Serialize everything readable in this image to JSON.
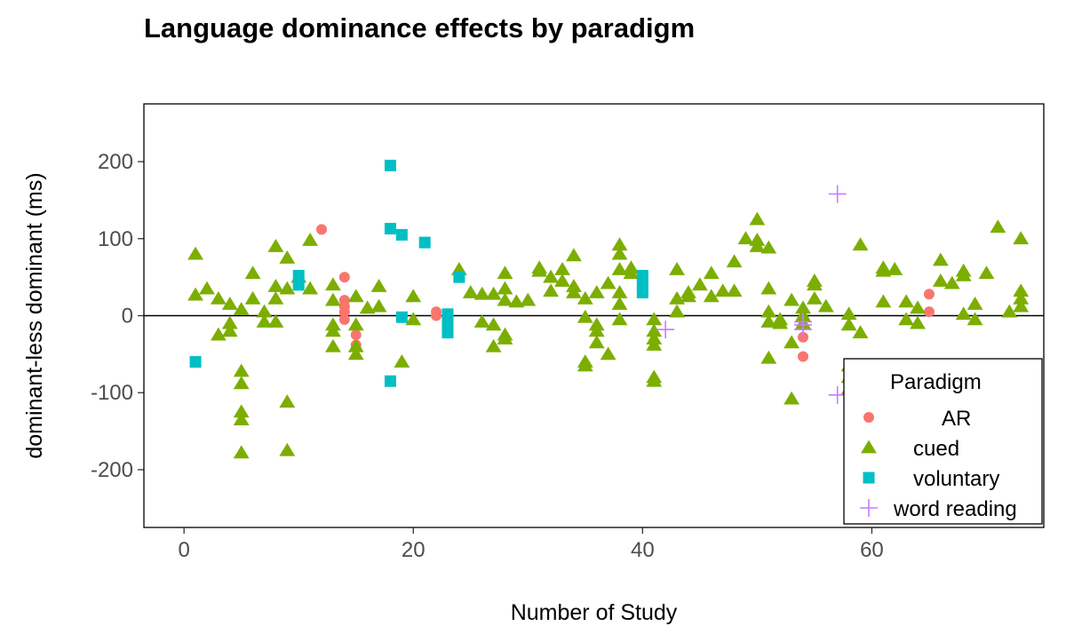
{
  "chart_data": {
    "type": "scatter",
    "title": "Language dominance effects by paradigm",
    "xlabel": "Number of Study",
    "ylabel": "dominant-less dominant (ms)",
    "xlim": [
      -3.5,
      75
    ],
    "ylim": [
      -275,
      275
    ],
    "xticks": [
      0,
      20,
      40,
      60
    ],
    "yticks": [
      200,
      100,
      0,
      -100,
      -200
    ],
    "hline": 0,
    "legend": {
      "title": "Paradigm",
      "position": "bottom-right",
      "entries": [
        "AR",
        "cued",
        "voluntary",
        "word reading"
      ]
    },
    "colors": {
      "AR": "#F8766D",
      "cued": "#7CAE00",
      "voluntary": "#00BFC4",
      "word reading": "#C77CFF"
    },
    "series": [
      {
        "name": "AR",
        "shape": "circle",
        "points": [
          [
            12,
            112
          ],
          [
            14,
            50
          ],
          [
            14,
            20
          ],
          [
            14,
            12
          ],
          [
            14,
            5
          ],
          [
            14,
            -5
          ],
          [
            15,
            -25
          ],
          [
            15,
            -38
          ],
          [
            22,
            5
          ],
          [
            22,
            0
          ],
          [
            54,
            -28
          ],
          [
            54,
            -53
          ],
          [
            65,
            28
          ],
          [
            65,
            5
          ]
        ]
      },
      {
        "name": "cued",
        "shape": "triangle",
        "points": [
          [
            1,
            80
          ],
          [
            1,
            27
          ],
          [
            2,
            35
          ],
          [
            3,
            22
          ],
          [
            3,
            -25
          ],
          [
            4,
            15
          ],
          [
            4,
            -10
          ],
          [
            4,
            -20
          ],
          [
            5,
            8
          ],
          [
            5,
            -72
          ],
          [
            5,
            -88
          ],
          [
            5,
            -125
          ],
          [
            5,
            -135
          ],
          [
            5,
            -178
          ],
          [
            6,
            55
          ],
          [
            6,
            22
          ],
          [
            7,
            5
          ],
          [
            7,
            -8
          ],
          [
            8,
            90
          ],
          [
            8,
            38
          ],
          [
            8,
            22
          ],
          [
            8,
            -8
          ],
          [
            9,
            75
          ],
          [
            9,
            35
          ],
          [
            9,
            -112
          ],
          [
            9,
            -175
          ],
          [
            10,
            50
          ],
          [
            11,
            35
          ],
          [
            11,
            98
          ],
          [
            13,
            40
          ],
          [
            13,
            20
          ],
          [
            13,
            -12
          ],
          [
            13,
            -20
          ],
          [
            13,
            -40
          ],
          [
            15,
            25
          ],
          [
            15,
            -12
          ],
          [
            15,
            -40
          ],
          [
            15,
            -50
          ],
          [
            16,
            10
          ],
          [
            17,
            38
          ],
          [
            17,
            12
          ],
          [
            19,
            -60
          ],
          [
            20,
            25
          ],
          [
            20,
            -5
          ],
          [
            24,
            60
          ],
          [
            25,
            30
          ],
          [
            26,
            28
          ],
          [
            26,
            -8
          ],
          [
            27,
            28
          ],
          [
            27,
            -12
          ],
          [
            27,
            -40
          ],
          [
            28,
            55
          ],
          [
            28,
            35
          ],
          [
            28,
            20
          ],
          [
            28,
            -25
          ],
          [
            28,
            -30
          ],
          [
            29,
            18
          ],
          [
            30,
            20
          ],
          [
            31,
            62
          ],
          [
            31,
            58
          ],
          [
            32,
            50
          ],
          [
            32,
            32
          ],
          [
            33,
            60
          ],
          [
            33,
            45
          ],
          [
            34,
            78
          ],
          [
            34,
            38
          ],
          [
            34,
            30
          ],
          [
            35,
            22
          ],
          [
            35,
            -2
          ],
          [
            35,
            -60
          ],
          [
            35,
            -65
          ],
          [
            36,
            30
          ],
          [
            36,
            -12
          ],
          [
            36,
            -20
          ],
          [
            36,
            -35
          ],
          [
            37,
            -50
          ],
          [
            37,
            42
          ],
          [
            38,
            92
          ],
          [
            38,
            80
          ],
          [
            38,
            60
          ],
          [
            38,
            30
          ],
          [
            38,
            15
          ],
          [
            38,
            -5
          ],
          [
            39,
            62
          ],
          [
            39,
            55
          ],
          [
            41,
            -5
          ],
          [
            41,
            -20
          ],
          [
            41,
            -30
          ],
          [
            41,
            -38
          ],
          [
            41,
            -80
          ],
          [
            41,
            -85
          ],
          [
            43,
            60
          ],
          [
            43,
            22
          ],
          [
            43,
            5
          ],
          [
            44,
            25
          ],
          [
            44,
            30
          ],
          [
            45,
            40
          ],
          [
            46,
            25
          ],
          [
            46,
            55
          ],
          [
            47,
            32
          ],
          [
            48,
            70
          ],
          [
            48,
            32
          ],
          [
            49,
            100
          ],
          [
            50,
            125
          ],
          [
            50,
            98
          ],
          [
            50,
            90
          ],
          [
            51,
            88
          ],
          [
            51,
            35
          ],
          [
            51,
            5
          ],
          [
            51,
            -8
          ],
          [
            51,
            -55
          ],
          [
            52,
            -10
          ],
          [
            52,
            -5
          ],
          [
            53,
            20
          ],
          [
            53,
            -35
          ],
          [
            53,
            -108
          ],
          [
            54,
            0
          ],
          [
            54,
            10
          ],
          [
            54,
            -10
          ],
          [
            55,
            45
          ],
          [
            55,
            40
          ],
          [
            55,
            22
          ],
          [
            56,
            12
          ],
          [
            58,
            2
          ],
          [
            58,
            -12
          ],
          [
            58,
            -65
          ],
          [
            58,
            -80
          ],
          [
            58,
            -95
          ],
          [
            59,
            92
          ],
          [
            59,
            -22
          ],
          [
            61,
            62
          ],
          [
            61,
            58
          ],
          [
            61,
            18
          ],
          [
            62,
            60
          ],
          [
            63,
            18
          ],
          [
            63,
            -5
          ],
          [
            64,
            10
          ],
          [
            64,
            -10
          ],
          [
            66,
            72
          ],
          [
            66,
            45
          ],
          [
            67,
            42
          ],
          [
            68,
            58
          ],
          [
            68,
            52
          ],
          [
            68,
            2
          ],
          [
            69,
            15
          ],
          [
            69,
            -5
          ],
          [
            70,
            55
          ],
          [
            71,
            115
          ],
          [
            72,
            5
          ],
          [
            73,
            100
          ],
          [
            73,
            32
          ],
          [
            73,
            22
          ],
          [
            73,
            12
          ]
        ]
      },
      {
        "name": "voluntary",
        "shape": "square",
        "points": [
          [
            1,
            -60
          ],
          [
            10,
            52
          ],
          [
            10,
            40
          ],
          [
            18,
            195
          ],
          [
            18,
            113
          ],
          [
            18,
            -85
          ],
          [
            19,
            105
          ],
          [
            19,
            -2
          ],
          [
            21,
            95
          ],
          [
            23,
            2
          ],
          [
            23,
            -8
          ],
          [
            23,
            -22
          ],
          [
            24,
            50
          ],
          [
            40,
            52
          ],
          [
            40,
            40
          ],
          [
            40,
            30
          ]
        ]
      },
      {
        "name": "word reading",
        "shape": "plus",
        "points": [
          [
            42,
            -18
          ],
          [
            54,
            -8
          ],
          [
            54,
            -12
          ],
          [
            54,
            -18
          ],
          [
            57,
            158
          ],
          [
            57,
            -103
          ]
        ]
      }
    ]
  }
}
